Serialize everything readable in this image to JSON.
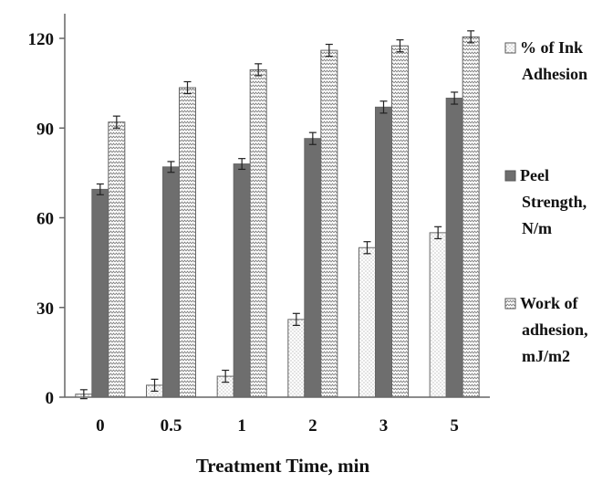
{
  "chart_data": {
    "type": "bar",
    "title": "",
    "xlabel": "Treatment Time, min",
    "ylabel": "",
    "categories": [
      "0",
      "0.5",
      "1",
      "2",
      "3",
      "5"
    ],
    "ylim": [
      0,
      130
    ],
    "yticks": [
      0,
      30,
      60,
      90,
      120
    ],
    "grid": false,
    "legend_position": "right",
    "series": [
      {
        "name": "% of Ink Adhesion",
        "legend_lines": [
          "% of Ink",
          "Adhesion"
        ],
        "values": [
          1,
          4,
          7,
          26,
          50,
          55
        ],
        "errors": [
          1.5,
          2,
          2,
          2,
          2,
          2
        ],
        "color": "#ffffff",
        "pattern": "dots"
      },
      {
        "name": "Peel Strength, N/m",
        "legend_lines": [
          "Peel",
          "Strength,",
          "N/m"
        ],
        "values": [
          69.5,
          77,
          78,
          86.5,
          97,
          100
        ],
        "errors": [
          1.8,
          1.8,
          1.8,
          2,
          2,
          2
        ],
        "color": "#6e6e6e",
        "pattern": "solid"
      },
      {
        "name": "Work of adhesion, mJ/m2",
        "legend_lines": [
          "Work of",
          "adhesion,",
          "mJ/m2"
        ],
        "values": [
          92,
          103.5,
          109.5,
          116,
          117.5,
          120.5
        ],
        "errors": [
          2,
          2,
          2,
          2,
          2,
          2
        ],
        "color": "#ffffff",
        "pattern": "zigzag"
      }
    ]
  }
}
